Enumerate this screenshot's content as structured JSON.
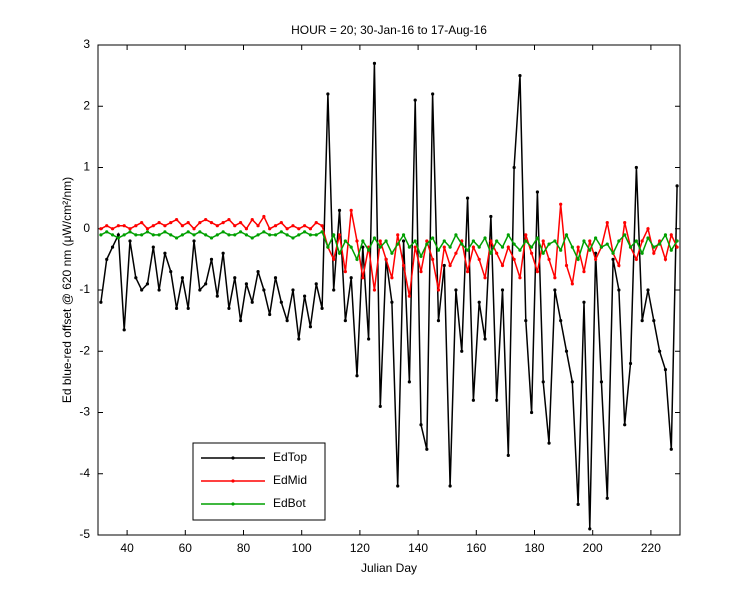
{
  "chart_data": {
    "type": "line",
    "title": "HOUR = 20; 30-Jan-16 to 17-Aug-16",
    "x_label": "Julian Day",
    "y_label": "Ed blue-red offset @ 620 nm (μW/cm²/nm)",
    "x": [
      31,
      33,
      35,
      37,
      39,
      41,
      43,
      45,
      47,
      49,
      51,
      53,
      55,
      57,
      59,
      61,
      63,
      65,
      67,
      69,
      71,
      73,
      75,
      77,
      79,
      81,
      83,
      85,
      87,
      89,
      91,
      93,
      95,
      97,
      99,
      101,
      103,
      105,
      107,
      109,
      111,
      113,
      115,
      117,
      119,
      121,
      123,
      125,
      127,
      129,
      131,
      133,
      135,
      137,
      139,
      141,
      143,
      145,
      147,
      149,
      151,
      153,
      155,
      157,
      159,
      161,
      163,
      165,
      167,
      169,
      171,
      173,
      175,
      177,
      179,
      181,
      183,
      185,
      187,
      189,
      191,
      193,
      195,
      197,
      199,
      201,
      203,
      205,
      207,
      209,
      211,
      213,
      215,
      217,
      219,
      221,
      223,
      225,
      227,
      229
    ],
    "series": [
      {
        "name": "EdTop",
        "color": "#000000",
        "values": [
          -1.2,
          -0.5,
          -0.3,
          -0.1,
          -1.65,
          -0.2,
          -0.8,
          -1.0,
          -0.9,
          -0.3,
          -1.0,
          -0.4,
          -0.7,
          -1.3,
          -0.8,
          -1.3,
          -0.2,
          -1.0,
          -0.9,
          -0.5,
          -1.1,
          -0.4,
          -1.3,
          -0.8,
          -1.5,
          -0.9,
          -1.2,
          -0.7,
          -1.0,
          -1.4,
          -0.8,
          -1.2,
          -1.5,
          -1.0,
          -1.8,
          -1.1,
          -1.6,
          -0.9,
          -1.3,
          2.2,
          -1.0,
          0.3,
          -1.5,
          -0.8,
          -2.4,
          -0.3,
          -1.8,
          2.7,
          -2.9,
          -0.5,
          -1.2,
          -4.2,
          -0.2,
          -2.5,
          2.1,
          -3.2,
          -3.6,
          2.2,
          -1.5,
          -0.6,
          -4.2,
          -1.0,
          -2.0,
          0.5,
          -2.8,
          -1.2,
          -1.8,
          0.2,
          -2.8,
          -1.0,
          -3.7,
          1.0,
          2.5,
          -1.5,
          -3.0,
          0.6,
          -2.5,
          -3.5,
          -1.0,
          -1.5,
          -2.0,
          -2.5,
          -4.5,
          -1.2,
          -4.9,
          -0.4,
          -2.5,
          -4.4,
          -0.5,
          -1.0,
          -3.2,
          -2.2,
          1.0,
          -1.5,
          -1.0,
          -1.5,
          -2.0,
          -2.3,
          -3.6,
          0.7
        ]
      },
      {
        "name": "EdMid",
        "color": "#ff0000",
        "values": [
          0.0,
          0.05,
          0.0,
          0.05,
          0.05,
          0.0,
          0.05,
          0.1,
          0.0,
          0.05,
          0.1,
          0.05,
          0.1,
          0.15,
          0.05,
          0.1,
          0.0,
          0.1,
          0.15,
          0.1,
          0.05,
          0.1,
          0.15,
          0.05,
          0.1,
          0.0,
          0.15,
          0.05,
          0.2,
          0.0,
          0.05,
          0.1,
          0.0,
          0.05,
          0.0,
          0.05,
          0.0,
          0.1,
          0.05,
          -0.3,
          -0.5,
          -0.1,
          -0.7,
          0.3,
          -0.2,
          -0.8,
          -0.3,
          -1.0,
          -0.2,
          -0.5,
          -0.8,
          -0.1,
          -0.6,
          -1.1,
          -0.3,
          -0.7,
          -0.2,
          -0.5,
          -1.0,
          -0.3,
          -0.6,
          -0.4,
          -0.2,
          -0.7,
          -0.3,
          -0.5,
          -0.8,
          -0.2,
          -0.4,
          -0.6,
          -0.3,
          -0.5,
          -0.8,
          -0.1,
          -0.4,
          -0.7,
          -0.2,
          -0.5,
          -0.8,
          0.4,
          -0.6,
          -0.9,
          -0.3,
          -0.7,
          -0.2,
          -0.5,
          -0.3,
          0.1,
          -0.4,
          -0.6,
          0.1,
          -0.3,
          -0.5,
          -0.2,
          0.0,
          -0.4,
          -0.2,
          -0.5,
          -0.1,
          -0.3
        ]
      },
      {
        "name": "EdBot",
        "color": "#00a000",
        "values": [
          -0.1,
          -0.05,
          -0.1,
          -0.15,
          -0.1,
          -0.05,
          -0.1,
          -0.1,
          -0.05,
          -0.1,
          -0.1,
          -0.05,
          -0.1,
          -0.15,
          -0.1,
          -0.05,
          -0.1,
          -0.05,
          -0.1,
          -0.15,
          -0.1,
          -0.05,
          -0.1,
          -0.1,
          -0.05,
          -0.1,
          -0.15,
          -0.1,
          -0.05,
          -0.1,
          -0.1,
          -0.05,
          -0.1,
          -0.15,
          -0.1,
          -0.05,
          -0.1,
          -0.1,
          -0.05,
          -0.3,
          -0.1,
          -0.4,
          -0.2,
          -0.3,
          -0.5,
          -0.2,
          -0.35,
          -0.15,
          -0.3,
          -0.2,
          -0.4,
          -0.25,
          -0.1,
          -0.3,
          -0.2,
          -0.45,
          -0.25,
          -0.15,
          -0.35,
          -0.2,
          -0.3,
          -0.1,
          -0.25,
          -0.35,
          -0.2,
          -0.3,
          -0.15,
          -0.4,
          -0.2,
          -0.3,
          -0.1,
          -0.25,
          -0.35,
          -0.2,
          -0.3,
          -0.15,
          -0.4,
          -0.25,
          -0.2,
          -0.35,
          -0.1,
          -0.3,
          -0.5,
          -0.2,
          -0.35,
          -0.15,
          -0.3,
          -0.25,
          -0.4,
          -0.2,
          -0.1,
          -0.3,
          -0.2,
          -0.4,
          -0.15,
          -0.3,
          -0.25,
          -0.1,
          -0.35,
          -0.2
        ]
      }
    ],
    "xlim": [
      30,
      230
    ],
    "xticks": [
      40,
      60,
      80,
      100,
      120,
      140,
      160,
      180,
      200,
      220
    ],
    "ylim": [
      -5,
      3
    ],
    "yticks": [
      -5,
      -4,
      -3,
      -2,
      -1,
      0,
      1,
      2,
      3
    ],
    "grid": false,
    "legend": "lower center"
  }
}
